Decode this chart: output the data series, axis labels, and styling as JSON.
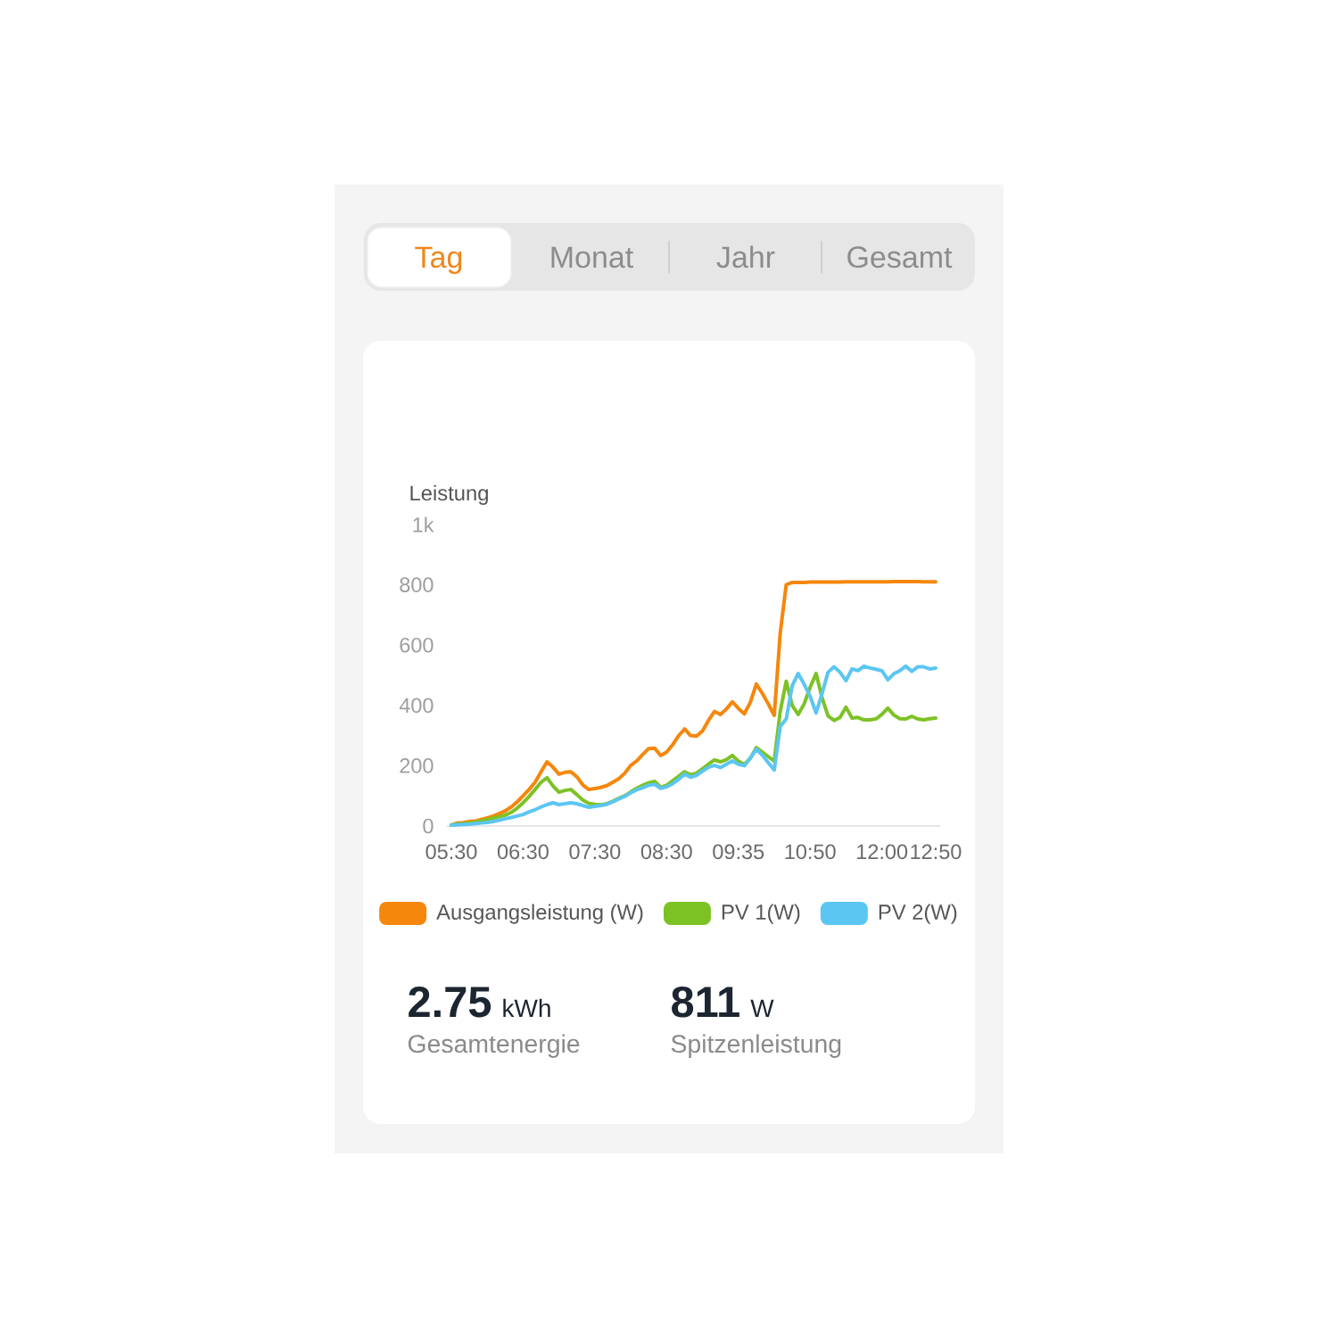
{
  "chart_data": {
    "type": "line",
    "ylabel": "Leistung",
    "categories": [
      "05:30",
      null,
      null,
      null,
      null,
      null,
      null,
      null,
      null,
      null,
      null,
      null,
      "06:30",
      null,
      null,
      null,
      null,
      null,
      null,
      null,
      null,
      null,
      null,
      null,
      "07:30",
      null,
      null,
      null,
      null,
      null,
      null,
      null,
      null,
      null,
      null,
      null,
      "08:30",
      null,
      null,
      null,
      null,
      null,
      null,
      null,
      null,
      null,
      null,
      null,
      "09:35",
      null,
      null,
      null,
      null,
      null,
      null,
      null,
      null,
      null,
      null,
      null,
      "10:50",
      null,
      null,
      null,
      null,
      null,
      null,
      null,
      null,
      null,
      null,
      null,
      "12:00",
      null,
      null,
      null,
      null,
      null,
      null,
      null,
      null,
      "12:50"
    ],
    "series": [
      {
        "name": "Ausgangsleistung (W)",
        "color": "#f5870c",
        "values": [
          3,
          10,
          11,
          15,
          16,
          22,
          27,
          33,
          41,
          50,
          63,
          80,
          100,
          121,
          145,
          180,
          213,
          195,
          172,
          178,
          180,
          163,
          136,
          121,
          124,
          128,
          134,
          145,
          157,
          175,
          201,
          216,
          237,
          257,
          258,
          234,
          245,
          269,
          299,
          322,
          300,
          298,
          315,
          350,
          380,
          370,
          388,
          412,
          390,
          372,
          410,
          471,
          440,
          405,
          367,
          640,
          800,
          808,
          808,
          808,
          809,
          809,
          809,
          809,
          809,
          809,
          810,
          810,
          810,
          810,
          810,
          810,
          810,
          810,
          811,
          811,
          811,
          811,
          811,
          810,
          810,
          810
        ]
      },
      {
        "name": "PV 1(W)",
        "color": "#7dc225",
        "values": [
          3,
          6,
          8,
          10,
          13,
          17,
          21,
          26,
          31,
          36,
          45,
          59,
          77,
          98,
          121,
          145,
          160,
          133,
          112,
          118,
          121,
          104,
          86,
          75,
          72,
          70,
          74,
          82,
          92,
          100,
          113,
          125,
          135,
          143,
          148,
          128,
          135,
          150,
          165,
          180,
          170,
          175,
          190,
          205,
          219,
          213,
          220,
          234,
          215,
          204,
          225,
          260,
          245,
          230,
          216,
          380,
          480,
          400,
          370,
          405,
          460,
          506,
          425,
          365,
          350,
          360,
          394,
          358,
          360,
          352,
          352,
          355,
          370,
          391,
          368,
          356,
          355,
          364,
          355,
          352,
          356,
          358
        ]
      },
      {
        "name": "PV 2(W)",
        "color": "#5bc6f2",
        "values": [
          3,
          4,
          5,
          6,
          8,
          10,
          12,
          15,
          19,
          24,
          28,
          33,
          38,
          47,
          54,
          63,
          71,
          77,
          71,
          74,
          77,
          74,
          68,
          62,
          65,
          68,
          72,
          80,
          90,
          98,
          110,
          120,
          127,
          135,
          138,
          125,
          130,
          140,
          155,
          172,
          162,
          168,
          182,
          195,
          201,
          194,
          205,
          216,
          205,
          200,
          225,
          255,
          235,
          210,
          186,
          330,
          355,
          465,
          506,
          470,
          430,
          375,
          440,
          510,
          528,
          510,
          482,
          521,
          515,
          530,
          524,
          520,
          515,
          485,
          505,
          515,
          530,
          513,
          528,
          528,
          521,
          524
        ]
      }
    ],
    "ylim": [
      0,
      1000
    ],
    "yticks": [
      0,
      200,
      400,
      600,
      800,
      {
        "value": 1000,
        "label": "1k"
      }
    ],
    "legend": "bottom",
    "annotations": [
      "Tag",
      "Monat",
      "Jahr",
      "Gesamt",
      "2.75",
      "kWh",
      "Gesamtenergie",
      "811",
      "W",
      "Spitzenleistung"
    ]
  }
}
